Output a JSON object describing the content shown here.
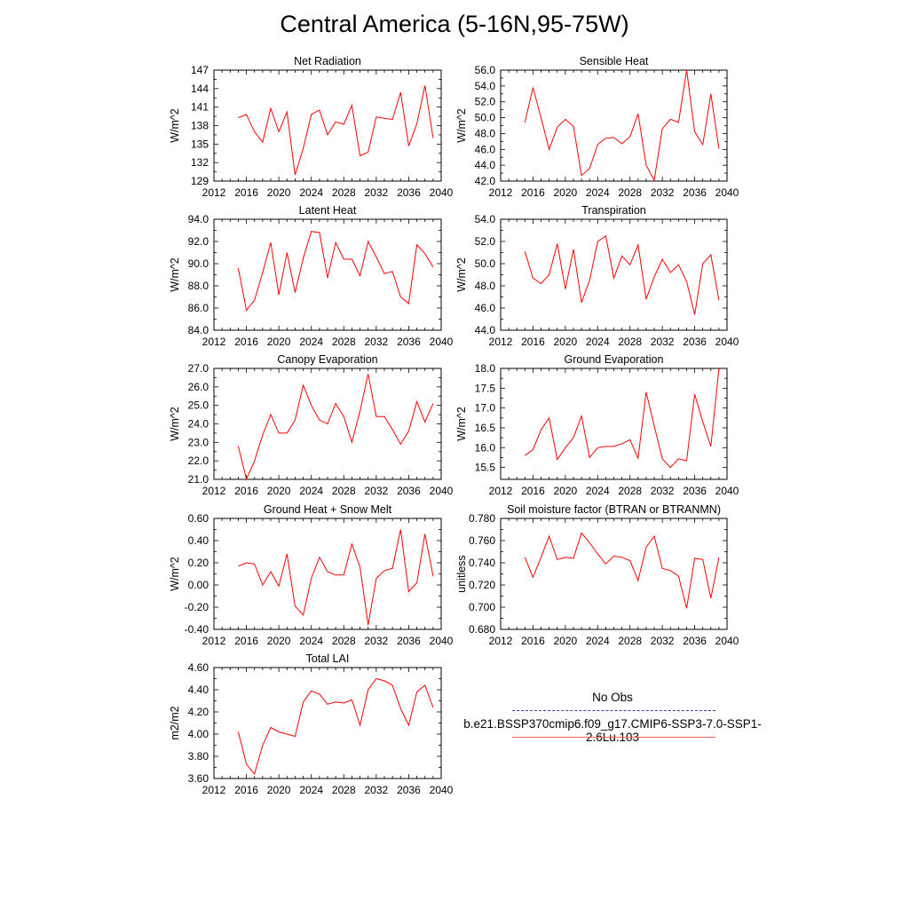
{
  "title": "Central America (5-16N,95-75W)",
  "legend": {
    "entries": [
      {
        "label": "No Obs",
        "color": "#3a3aa8",
        "dash": true
      },
      {
        "label": "b.e21.BSSP370cmip6.f09_g17.CMIP6-SSP3-7.0-SSP1-2.6Lu.103",
        "color": "#ff0000",
        "dash": false
      }
    ]
  },
  "chart_data": [
    {
      "type": "line",
      "title": "Net Radiation",
      "ylabel": "W/m^2",
      "xlim": [
        2012,
        2040
      ],
      "ylim": [
        129,
        147
      ],
      "xticks": [
        2012,
        2016,
        2020,
        2024,
        2028,
        2032,
        2036,
        2040
      ],
      "yticks": [
        "129",
        "132",
        "135",
        "138",
        "141",
        "144",
        "147"
      ],
      "color": "#ff0000",
      "x": [
        2015,
        2016,
        2017,
        2018,
        2019,
        2020,
        2021,
        2022,
        2023,
        2024,
        2025,
        2026,
        2027,
        2028,
        2029,
        2030,
        2031,
        2032,
        2033,
        2034,
        2035,
        2036,
        2037,
        2038,
        2039
      ],
      "y": [
        139.3,
        139.8,
        137.0,
        135.3,
        140.8,
        137.0,
        140.2,
        130.0,
        134.3,
        139.8,
        140.5,
        136.5,
        138.6,
        138.2,
        141.3,
        133.1,
        133.7,
        139.4,
        139.2,
        139.0,
        143.4,
        134.7,
        138.3,
        144.5,
        136.0
      ]
    },
    {
      "type": "line",
      "title": "Sensible Heat",
      "ylabel": "W/m^2",
      "xlim": [
        2012,
        2040
      ],
      "ylim": [
        42,
        56
      ],
      "xticks": [
        2012,
        2016,
        2020,
        2024,
        2028,
        2032,
        2036,
        2040
      ],
      "yticks": [
        "42.0",
        "44.0",
        "46.0",
        "48.0",
        "50.0",
        "52.0",
        "54.0",
        "56.0"
      ],
      "color": "#ff0000",
      "x": [
        2015,
        2016,
        2017,
        2018,
        2019,
        2020,
        2021,
        2022,
        2023,
        2024,
        2025,
        2026,
        2027,
        2028,
        2029,
        2030,
        2031,
        2032,
        2033,
        2034,
        2035,
        2036,
        2037,
        2038,
        2039
      ],
      "y": [
        49.4,
        53.8,
        50.0,
        46.0,
        48.8,
        49.8,
        48.9,
        42.7,
        43.6,
        46.6,
        47.4,
        47.5,
        46.7,
        47.6,
        50.5,
        44.0,
        42.1,
        48.6,
        49.8,
        49.4,
        56.0,
        48.2,
        46.6,
        53.0,
        46.1
      ]
    },
    {
      "type": "line",
      "title": "Latent Heat",
      "ylabel": "W/m^2",
      "xlim": [
        2012,
        2040
      ],
      "ylim": [
        84,
        94
      ],
      "xticks": [
        2012,
        2016,
        2020,
        2024,
        2028,
        2032,
        2036,
        2040
      ],
      "yticks": [
        "84.0",
        "86.0",
        "88.0",
        "90.0",
        "92.0",
        "94.0"
      ],
      "color": "#ff0000",
      "x": [
        2015,
        2016,
        2017,
        2018,
        2019,
        2020,
        2021,
        2022,
        2023,
        2024,
        2025,
        2026,
        2027,
        2028,
        2029,
        2030,
        2031,
        2032,
        2033,
        2034,
        2035,
        2036,
        2037,
        2038,
        2039
      ],
      "y": [
        89.6,
        85.8,
        86.7,
        89.2,
        91.9,
        87.2,
        91.0,
        87.4,
        90.5,
        92.9,
        92.8,
        88.7,
        91.9,
        90.4,
        90.4,
        88.9,
        92.0,
        90.6,
        89.1,
        89.3,
        87.0,
        86.4,
        91.7,
        90.9,
        89.7
      ]
    },
    {
      "type": "line",
      "title": "Transpiration",
      "ylabel": "W/m^2",
      "xlim": [
        2012,
        2040
      ],
      "ylim": [
        44,
        54
      ],
      "xticks": [
        2012,
        2016,
        2020,
        2024,
        2028,
        2032,
        2036,
        2040
      ],
      "yticks": [
        "44.0",
        "46.0",
        "48.0",
        "50.0",
        "52.0",
        "54.0"
      ],
      "color": "#ff0000",
      "x": [
        2015,
        2016,
        2017,
        2018,
        2019,
        2020,
        2021,
        2022,
        2023,
        2024,
        2025,
        2026,
        2027,
        2028,
        2029,
        2030,
        2031,
        2032,
        2033,
        2034,
        2035,
        2036,
        2037,
        2038,
        2039
      ],
      "y": [
        51.1,
        48.7,
        48.2,
        49.0,
        51.8,
        47.7,
        51.3,
        46.5,
        48.5,
        52.0,
        52.5,
        48.7,
        50.7,
        49.9,
        51.7,
        46.8,
        48.8,
        50.4,
        49.2,
        49.9,
        48.4,
        45.4,
        50.0,
        50.8,
        46.7
      ]
    },
    {
      "type": "line",
      "title": "Canopy Evaporation",
      "ylabel": "W/m^2",
      "xlim": [
        2012,
        2040
      ],
      "ylim": [
        21,
        27
      ],
      "xticks": [
        2012,
        2016,
        2020,
        2024,
        2028,
        2032,
        2036,
        2040
      ],
      "yticks": [
        "21.0",
        "22.0",
        "23.0",
        "24.0",
        "25.0",
        "26.0",
        "27.0"
      ],
      "color": "#ff0000",
      "x": [
        2015,
        2016,
        2017,
        2018,
        2019,
        2020,
        2021,
        2022,
        2023,
        2024,
        2025,
        2026,
        2027,
        2028,
        2029,
        2030,
        2031,
        2032,
        2033,
        2034,
        2035,
        2036,
        2037,
        2038,
        2039
      ],
      "y": [
        22.8,
        21.0,
        22.0,
        23.4,
        24.5,
        23.5,
        23.5,
        24.2,
        26.1,
        25.0,
        24.2,
        24.0,
        25.1,
        24.4,
        23.0,
        24.7,
        26.7,
        24.4,
        24.4,
        23.7,
        22.9,
        23.6,
        25.2,
        24.1,
        25.1
      ]
    },
    {
      "type": "line",
      "title": "Ground Evaporation",
      "ylabel": "W/m^2",
      "xlim": [
        2012,
        2040
      ],
      "ylim": [
        15.2,
        18.0
      ],
      "xticks": [
        2012,
        2016,
        2020,
        2024,
        2028,
        2032,
        2036,
        2040
      ],
      "yticks": [
        "15.5",
        "16.0",
        "16.5",
        "17.0",
        "17.5",
        "18.0"
      ],
      "color": "#ff0000",
      "x": [
        2015,
        2016,
        2017,
        2018,
        2019,
        2020,
        2021,
        2022,
        2023,
        2024,
        2025,
        2026,
        2027,
        2028,
        2029,
        2030,
        2031,
        2032,
        2033,
        2034,
        2035,
        2036,
        2037,
        2038,
        2039
      ],
      "y": [
        15.8,
        15.95,
        16.45,
        16.75,
        15.7,
        16.0,
        16.25,
        16.8,
        15.75,
        16.0,
        16.03,
        16.03,
        16.1,
        16.2,
        15.73,
        17.4,
        16.55,
        15.72,
        15.5,
        15.72,
        15.67,
        17.35,
        16.65,
        16.03,
        18.0
      ]
    },
    {
      "type": "line",
      "title": "Ground Heat + Snow Melt",
      "ylabel": "W/m^2",
      "xlim": [
        2012,
        2040
      ],
      "ylim": [
        -0.4,
        0.6
      ],
      "xticks": [
        2012,
        2016,
        2020,
        2024,
        2028,
        2032,
        2036,
        2040
      ],
      "yticks": [
        "-0.40",
        "-0.20",
        "0.00",
        "0.20",
        "0.40",
        "0.60"
      ],
      "color": "#ff0000",
      "x": [
        2015,
        2016,
        2017,
        2018,
        2019,
        2020,
        2021,
        2022,
        2023,
        2024,
        2025,
        2026,
        2027,
        2028,
        2029,
        2030,
        2031,
        2032,
        2033,
        2034,
        2035,
        2036,
        2037,
        2038,
        2039
      ],
      "y": [
        0.17,
        0.2,
        0.19,
        0.0,
        0.12,
        -0.01,
        0.28,
        -0.19,
        -0.27,
        0.06,
        0.25,
        0.12,
        0.09,
        0.09,
        0.37,
        0.16,
        -0.36,
        0.06,
        0.13,
        0.15,
        0.5,
        -0.06,
        0.02,
        0.46,
        0.08
      ]
    },
    {
      "type": "line",
      "title": "Soil moisture factor (BTRAN or BTRANMN)",
      "ylabel": "unitless",
      "xlim": [
        2012,
        2040
      ],
      "ylim": [
        0.68,
        0.78
      ],
      "xticks": [
        2012,
        2016,
        2020,
        2024,
        2028,
        2032,
        2036,
        2040
      ],
      "yticks": [
        "0.680",
        "0.700",
        "0.720",
        "0.740",
        "0.760",
        "0.780"
      ],
      "color": "#ff0000",
      "x": [
        2015,
        2016,
        2017,
        2018,
        2019,
        2020,
        2021,
        2022,
        2023,
        2024,
        2025,
        2026,
        2027,
        2028,
        2029,
        2030,
        2031,
        2032,
        2033,
        2034,
        2035,
        2036,
        2037,
        2038,
        2039
      ],
      "y": [
        0.745,
        0.727,
        0.745,
        0.764,
        0.743,
        0.745,
        0.744,
        0.767,
        0.758,
        0.748,
        0.739,
        0.746,
        0.745,
        0.742,
        0.724,
        0.754,
        0.764,
        0.735,
        0.733,
        0.728,
        0.699,
        0.744,
        0.743,
        0.708,
        0.745
      ]
    },
    {
      "type": "line",
      "title": "Total LAI",
      "ylabel": "m2/m2",
      "xlim": [
        2012,
        2040
      ],
      "ylim": [
        3.6,
        4.6
      ],
      "xticks": [
        2012,
        2016,
        2020,
        2024,
        2028,
        2032,
        2036,
        2040
      ],
      "yticks": [
        "3.60",
        "3.80",
        "4.00",
        "4.20",
        "4.40",
        "4.60"
      ],
      "color": "#ff0000",
      "x": [
        2015,
        2016,
        2017,
        2018,
        2019,
        2020,
        2021,
        2022,
        2023,
        2024,
        2025,
        2026,
        2027,
        2028,
        2029,
        2030,
        2031,
        2032,
        2033,
        2034,
        2035,
        2036,
        2037,
        2038,
        2039
      ],
      "y": [
        4.02,
        3.73,
        3.64,
        3.9,
        4.06,
        4.02,
        4.0,
        3.98,
        4.29,
        4.39,
        4.36,
        4.27,
        4.29,
        4.28,
        4.31,
        4.08,
        4.4,
        4.5,
        4.48,
        4.44,
        4.23,
        4.08,
        4.38,
        4.44,
        4.24
      ]
    }
  ]
}
